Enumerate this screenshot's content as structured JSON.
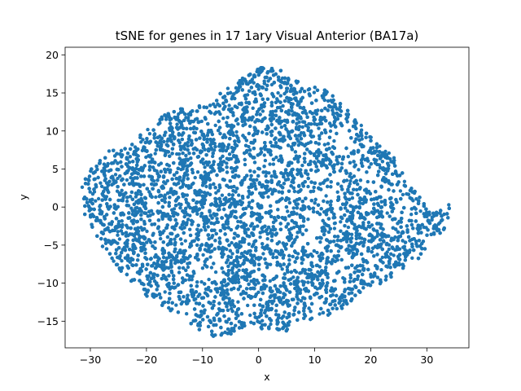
{
  "chart_data": {
    "type": "scatter",
    "title": "tSNE for genes in 17 1ary Visual Anterior (BA17a)",
    "xlabel": "x",
    "ylabel": "y",
    "xlim": [
      -34.5,
      37.5
    ],
    "ylim": [
      -18.5,
      21
    ],
    "xticks": [
      -30,
      -20,
      -10,
      0,
      10,
      20,
      30
    ],
    "yticks": [
      -15,
      -10,
      -5,
      0,
      5,
      10,
      15,
      20
    ],
    "xtick_labels": [
      "−30",
      "−20",
      "−10",
      "0",
      "10",
      "20",
      "30"
    ],
    "ytick_labels": [
      "−15",
      "−10",
      "−5",
      "0",
      "5",
      "10",
      "15",
      "20"
    ],
    "grid": false,
    "legend": "none",
    "marker_color": "#1f77b4",
    "shape_outline": [
      [
        -31.5,
        3
      ],
      [
        -30,
        5
      ],
      [
        -27,
        7.5
      ],
      [
        -24,
        8
      ],
      [
        -20,
        10
      ],
      [
        -17,
        12.5
      ],
      [
        -13,
        13
      ],
      [
        -9,
        13.5
      ],
      [
        -6,
        15.5
      ],
      [
        -3,
        17
      ],
      [
        0,
        18.2
      ],
      [
        2,
        19
      ],
      [
        5,
        17.5
      ],
      [
        8,
        16
      ],
      [
        12,
        15.5
      ],
      [
        15,
        13.5
      ],
      [
        18,
        11
      ],
      [
        22,
        8
      ],
      [
        25,
        6
      ],
      [
        27,
        3
      ],
      [
        30,
        0
      ],
      [
        33,
        -0.5
      ],
      [
        34.5,
        1
      ],
      [
        34.2,
        -2
      ],
      [
        33,
        -4
      ],
      [
        30,
        -6
      ],
      [
        27,
        -7.5
      ],
      [
        24,
        -9
      ],
      [
        21,
        -10.5
      ],
      [
        17,
        -12
      ],
      [
        14,
        -14
      ],
      [
        11,
        -14.5
      ],
      [
        8,
        -15
      ],
      [
        5,
        -16.3
      ],
      [
        2,
        -16
      ],
      [
        -2,
        -16
      ],
      [
        -5,
        -16.8
      ],
      [
        -8,
        -17
      ],
      [
        -11,
        -16
      ],
      [
        -15,
        -14
      ],
      [
        -20,
        -12
      ],
      [
        -24,
        -9
      ],
      [
        -27,
        -6
      ],
      [
        -29,
        -4
      ],
      [
        -31,
        -1
      ],
      [
        -31.5,
        1
      ]
    ],
    "approx_point_count": 9000
  }
}
